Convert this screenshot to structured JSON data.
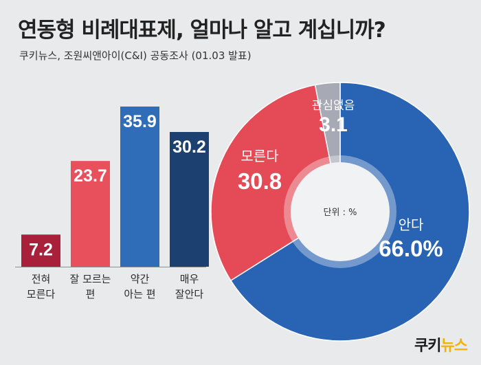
{
  "header": {
    "title": "연동형 비례대표제, 얼마나 알고 계십니까?",
    "subtitle": "쿠키뉴스, 조원씨앤아이(C&I) 공동조사 (01.03 발표)"
  },
  "chart_data": [
    {
      "type": "bar",
      "categories": [
        "전혀\n모른다",
        "잘 모르는\n편",
        "약간\n아는 편",
        "매우\n잘안다"
      ],
      "values": [
        7.2,
        23.7,
        35.9,
        30.2
      ],
      "colors": [
        "#a8203a",
        "#e8505b",
        "#2f6db8",
        "#1c4170"
      ],
      "grid": false,
      "legend": "none"
    },
    {
      "type": "pie",
      "style": "donut",
      "unit_label": "단위 : %",
      "slices": [
        {
          "label": "안다",
          "value": 66.0,
          "display": "66.0%",
          "color": "#2963b3"
        },
        {
          "label": "모른다",
          "value": 30.8,
          "display": "30.8",
          "color": "#e44b57"
        },
        {
          "label": "관심없음",
          "value": 3.1,
          "display": "3.1",
          "color": "#a7aab4"
        }
      ]
    }
  ],
  "footer": {
    "logo_part1": "쿠키",
    "logo_part2": "뉴스"
  }
}
